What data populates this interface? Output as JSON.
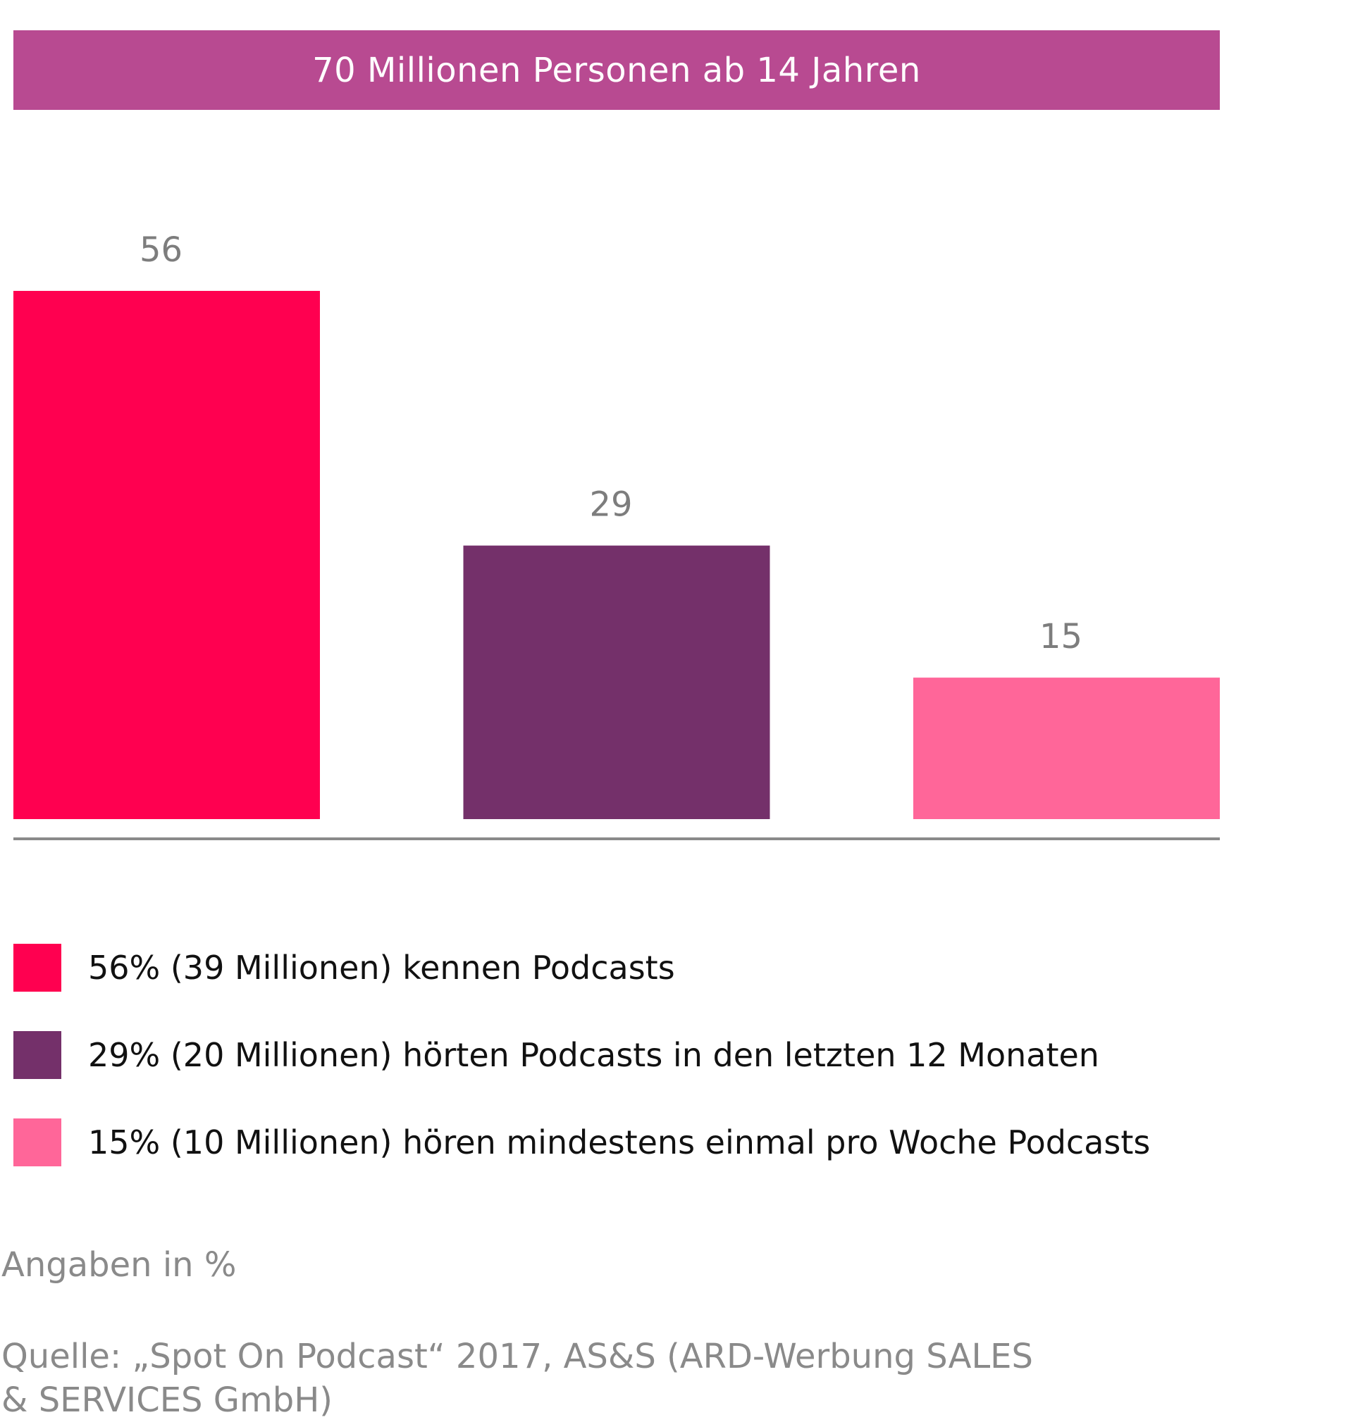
{
  "header": {
    "title": "70 Millionen Personen ab 14 Jahren"
  },
  "chart_data": {
    "type": "bar",
    "categories": [
      "kennen Podcasts",
      "hörten Podcasts in den letzten 12 Monaten",
      "hören mindestens einmal pro Woche Podcasts"
    ],
    "values": [
      56,
      29,
      15
    ],
    "value_labels": [
      "56",
      "29",
      "15"
    ],
    "colors": [
      "#ff0050",
      "#74306a",
      "#ff6699"
    ],
    "axis_color": "#8a8a8a",
    "ylim": [
      0,
      56
    ],
    "grid": false,
    "legend_placement": "bottom"
  },
  "legend": {
    "items": [
      {
        "label": "56% (39 Millionen) kennen Podcasts",
        "color": "#ff0050"
      },
      {
        "label": "29% (20 Millionen) hörten Podcasts in den letzten 12 Monaten",
        "color": "#74306a"
      },
      {
        "label": "15% (10 Millionen) hören mindestens einmal pro Woche Podcasts",
        "color": "#ff6699"
      }
    ]
  },
  "footer": {
    "unit_note": "Angaben in %",
    "source": "Quelle: „Spot On Podcast“ 2017, AS&S (ARD-Werbung SALES & SERVICES GmbH)"
  }
}
